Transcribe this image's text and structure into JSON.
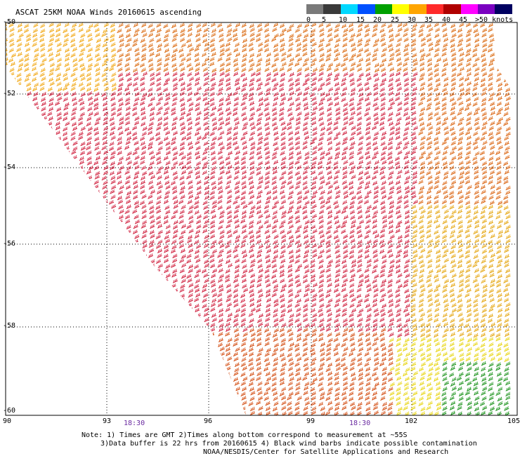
{
  "title": "ASCAT 25KM NOAA Winds 20160615 ascending",
  "legend": {
    "labels": [
      "0",
      "5",
      "10",
      "15",
      "20",
      "25",
      "30",
      "35",
      "40",
      "45",
      ">50 knots"
    ],
    "colors": [
      "#7a7a7a",
      "#3a3a3a",
      "#00d8ff",
      "#0050ff",
      "#00a000",
      "#ffff00",
      "#ffa500",
      "#ff2a2a",
      "#b00000",
      "#ff00ff",
      "#7a00c0",
      "#000060"
    ]
  },
  "map": {
    "lat_labels": [
      "-50",
      "-52",
      "-54",
      "-56",
      "-58",
      "-60"
    ],
    "lon_labels": [
      "90",
      "93",
      "96",
      "99",
      "102",
      "105"
    ],
    "time_labels": [
      "18:30",
      "18:30"
    ]
  },
  "notes": {
    "line1": "Note: 1) Times are GMT 2)Times along bottom correspond to measurement at ~55S",
    "line2": "3)Data buffer is 22 hrs from 20160615 4) Black wind barbs indicate possible contamination",
    "line3": "NOAA/NESDIS/Center for Satellite Applications and Research"
  }
}
